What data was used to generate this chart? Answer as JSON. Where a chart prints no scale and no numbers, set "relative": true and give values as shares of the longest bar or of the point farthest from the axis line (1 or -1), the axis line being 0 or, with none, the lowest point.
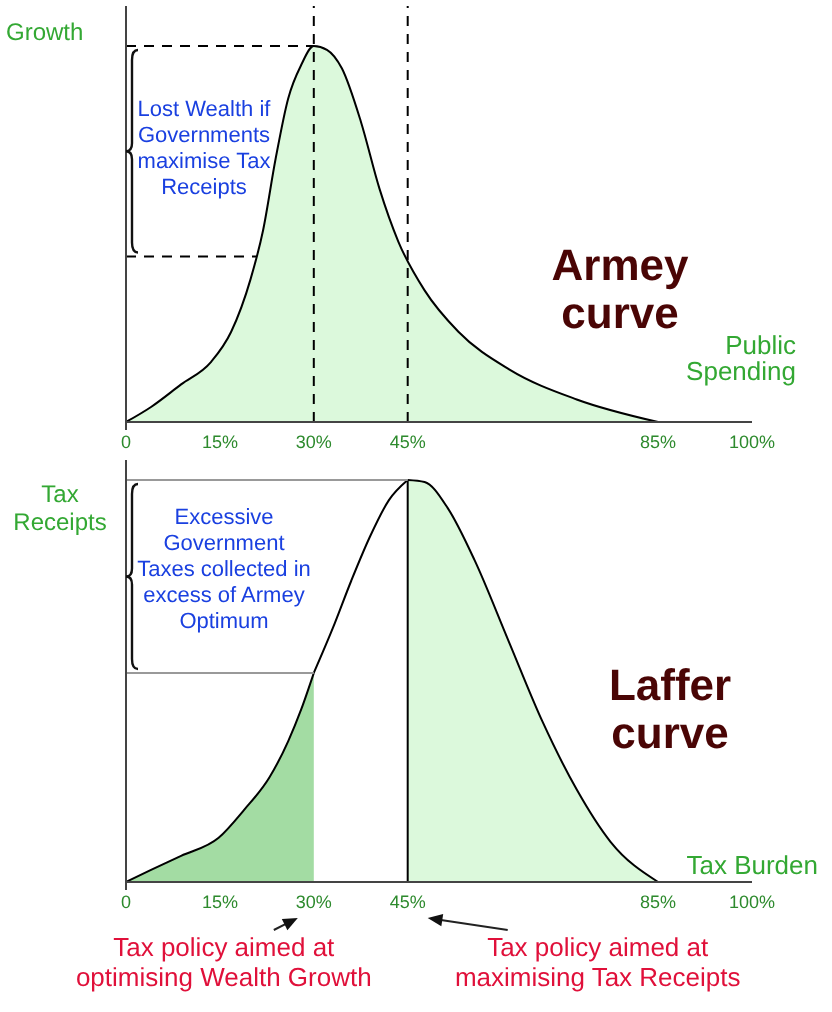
{
  "chart_data": [
    {
      "type": "area",
      "title": "Armey curve",
      "xlabel": "Public Spending",
      "ylabel": "Growth",
      "relative": true,
      "xlim": [
        0,
        100
      ],
      "xticks": [
        0,
        {
          "value": 15,
          "label": "15%"
        },
        {
          "value": 30,
          "label": "30%"
        },
        {
          "value": 45,
          "label": "45%"
        },
        {
          "value": 85,
          "label": "85%"
        },
        {
          "value": 100,
          "label": "100%"
        }
      ],
      "series": [
        {
          "type": "area",
          "color": "#dcf9dc",
          "x": [
            0,
            4,
            8.8,
            13.6,
            16.8,
            19.9,
            21.9,
            23.9,
            25.9,
            28,
            30,
            32.1,
            34.5,
            37.5,
            40.5,
            43.5,
            47.7,
            53.1,
            61.2,
            72,
            85
          ],
          "values": [
            0,
            0.04,
            0.1,
            0.16,
            0.24,
            0.38,
            0.51,
            0.7,
            0.86,
            0.95,
            1,
            0.99,
            0.94,
            0.8,
            0.62,
            0.48,
            0.35,
            0.24,
            0.14,
            0.06,
            0
          ]
        }
      ],
      "ref_lines": [
        {
          "axis": "x",
          "value": 30,
          "line_style": "dashed",
          "color": "#000000"
        },
        {
          "axis": "x",
          "value": 45,
          "line_style": "dashed",
          "color": "#000000"
        },
        {
          "axis": "y",
          "value": 1,
          "line_style": "dashed",
          "color": "#000000"
        },
        {
          "axis": "y",
          "value": 0.44,
          "line_style": "dashed",
          "color": "#000000"
        }
      ],
      "annotations": [
        "Lost Wealth if Governments maximise Tax Receipts"
      ]
    },
    {
      "type": "area",
      "title": "Laffer curve",
      "xlabel": "Tax Burden",
      "ylabel": "Tax Receipts",
      "relative": true,
      "xlim": [
        0,
        100
      ],
      "xticks": [
        0,
        {
          "value": 15,
          "label": "15%"
        },
        {
          "value": 30,
          "label": "30%"
        },
        {
          "value": 45,
          "label": "45%"
        },
        {
          "value": 85,
          "label": "85%"
        },
        {
          "value": 100,
          "label": "100%"
        }
      ],
      "series": [
        {
          "type": "area",
          "color": "#a3dca3",
          "x": [
            0,
            4,
            8.8,
            14.8,
            18.9,
            22.9,
            25.9,
            28,
            30
          ],
          "values": [
            0,
            0.03,
            0.065,
            0.11,
            0.18,
            0.26,
            0.35,
            0.43,
            0.52
          ]
        },
        {
          "type": "line",
          "color": "#000000",
          "x": [
            30,
            33,
            36,
            39,
            42,
            45
          ],
          "values": [
            0.52,
            0.63,
            0.75,
            0.86,
            0.95,
            1
          ]
        },
        {
          "type": "area",
          "color": "#dcf9dc",
          "x": [
            45,
            47.7,
            51.4,
            55.7,
            61.1,
            66.5,
            72,
            77.4,
            85
          ],
          "values": [
            1,
            0.995,
            0.93,
            0.8,
            0.6,
            0.4,
            0.23,
            0.1,
            0
          ]
        }
      ],
      "ref_lines": [
        {
          "axis": "x",
          "value": 45,
          "line_style": "solid",
          "color": "#000000"
        },
        {
          "axis": "y",
          "value": 1,
          "line_style": "solid",
          "color": "#999999"
        },
        {
          "axis": "y",
          "value": 0.52,
          "line_style": "solid",
          "color": "#999999"
        }
      ],
      "annotations": [
        "Excessive Government Taxes collected in excess of Armey Optimum",
        {
          "text": "Tax policy aimed at optimising Wealth Growth",
          "x": 30,
          "y": 0
        },
        {
          "text": "Tax policy aimed at maximising Tax Receipts",
          "x": 45,
          "y": 0
        }
      ]
    }
  ]
}
